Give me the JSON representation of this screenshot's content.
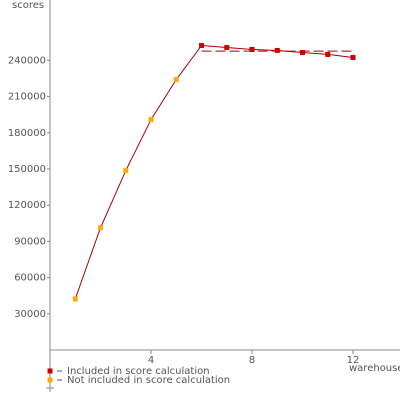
{
  "chart_data": {
    "type": "line",
    "y_label": "scores",
    "x_label": "warehouses",
    "xlim": [
      0,
      13.86
    ],
    "xticks": [
      4,
      8,
      12
    ],
    "ylim": [
      0,
      290000
    ],
    "yticks": [
      30000,
      60000,
      90000,
      120000,
      150000,
      180000,
      210000,
      240000
    ],
    "line_color": "#aa0000",
    "reference_line": {
      "value": 247600,
      "x": [
        6,
        12
      ],
      "color": "#aa0000"
    },
    "series": [
      {
        "name": "Included in score calculation",
        "color": "#cc0000",
        "x": [
          6,
          7,
          8,
          9,
          10,
          11,
          12
        ],
        "values": [
          252300,
          250600,
          249000,
          248200,
          246500,
          244900,
          242400
        ]
      },
      {
        "name": "Not included in score calculation",
        "color": "#ffaa00",
        "x": [
          1,
          2,
          3,
          4,
          5
        ],
        "values": [
          42300,
          101300,
          148600,
          190900,
          224100
        ]
      }
    ]
  }
}
